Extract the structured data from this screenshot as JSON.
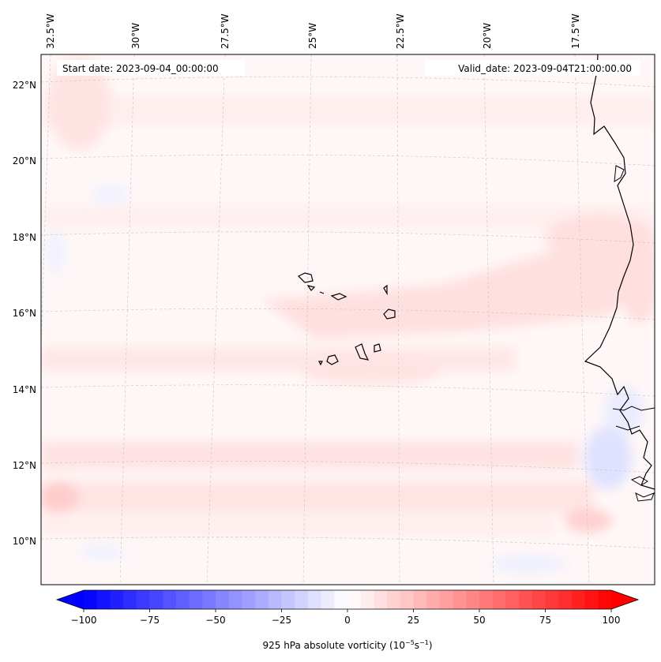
{
  "header": {
    "start_date": "Start date: 2023-09-04_00:00:00",
    "valid_date": "Valid_date: 2023-09-04T21:00:00.00"
  },
  "map": {
    "lon_labels": [
      "32.5°W",
      "30°W",
      "27.5°W",
      "25°W",
      "22.5°W",
      "20°W",
      "17.5°W"
    ],
    "lat_labels": [
      "22°N",
      "20°N",
      "18°N",
      "16°N",
      "14°N",
      "12°N",
      "10°N"
    ],
    "field_colors": {
      "positive_light": "#ffe9e9",
      "positive_medium": "#ffd5d5",
      "negative_light": "#eef0ff",
      "negative_medium": "#dfe3ff",
      "coast": "#000000",
      "grid": "#c8c8c8"
    }
  },
  "colorbar": {
    "tick_labels": [
      "−100",
      "−75",
      "−50",
      "−25",
      "0",
      "25",
      "50",
      "75",
      "100"
    ],
    "tick_values": [
      -100,
      -75,
      -50,
      -25,
      0,
      25,
      50,
      75,
      100
    ],
    "vmin": -100,
    "vmax": 100,
    "levels": 41,
    "cmap": "bwr",
    "label_prefix": "925 hPa absolute vorticity (10",
    "label_exp1": "−5",
    "label_mid": "s",
    "label_exp2": "−1",
    "label_suffix": ")"
  }
}
